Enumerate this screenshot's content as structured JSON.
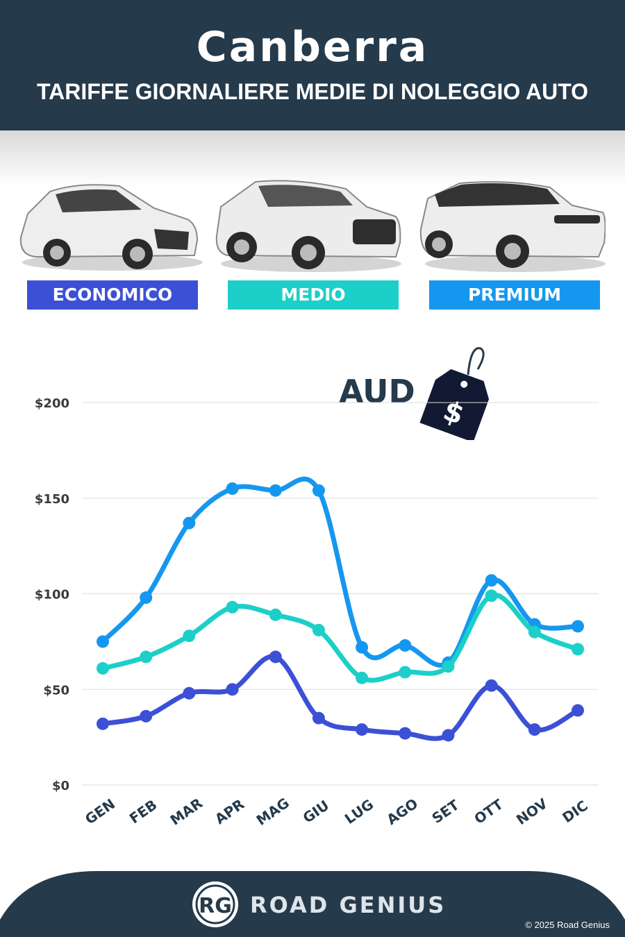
{
  "header": {
    "city": "Canberra",
    "subtitle": "TARIFFE GIORNALIERE MEDIE DI NOLEGGIO AUTO"
  },
  "categories": [
    {
      "label": "ECONOMICO",
      "color": "#3c50d6",
      "icon": "hatchback-car"
    },
    {
      "label": "MEDIO",
      "color": "#1ccfc8",
      "icon": "suv-car"
    },
    {
      "label": "PREMIUM",
      "color": "#1697ef",
      "icon": "luxury-suv-car"
    }
  ],
  "currency": {
    "code": "AUD",
    "symbol": "$",
    "icon": "price-tag-icon"
  },
  "chart_data": {
    "type": "line",
    "categories": [
      "GEN",
      "FEB",
      "MAR",
      "APR",
      "MAG",
      "GIU",
      "LUG",
      "AGO",
      "SET",
      "OTT",
      "NOV",
      "DIC"
    ],
    "series": [
      {
        "name": "PREMIUM",
        "color": "#1697ef",
        "values": [
          75,
          98,
          137,
          155,
          154,
          154,
          72,
          73,
          64,
          107,
          84,
          83
        ]
      },
      {
        "name": "MEDIO",
        "color": "#1ccfc8",
        "values": [
          61,
          67,
          78,
          93,
          89,
          81,
          56,
          59,
          62,
          99,
          80,
          71
        ]
      },
      {
        "name": "ECONOMICO",
        "color": "#3c50d6",
        "values": [
          32,
          36,
          48,
          50,
          67,
          35,
          29,
          27,
          26,
          52,
          29,
          39
        ]
      }
    ],
    "yticks": [
      "$0",
      "$50",
      "$100",
      "$150",
      "$200"
    ],
    "ylim": [
      0,
      200
    ],
    "grid": true,
    "title": "",
    "xlabel": "",
    "ylabel": ""
  },
  "footer": {
    "logo_text": "RG",
    "brand": "ROAD GENIUS",
    "copyright": "© 2025 Road Genius",
    "background": "#253a4b"
  }
}
